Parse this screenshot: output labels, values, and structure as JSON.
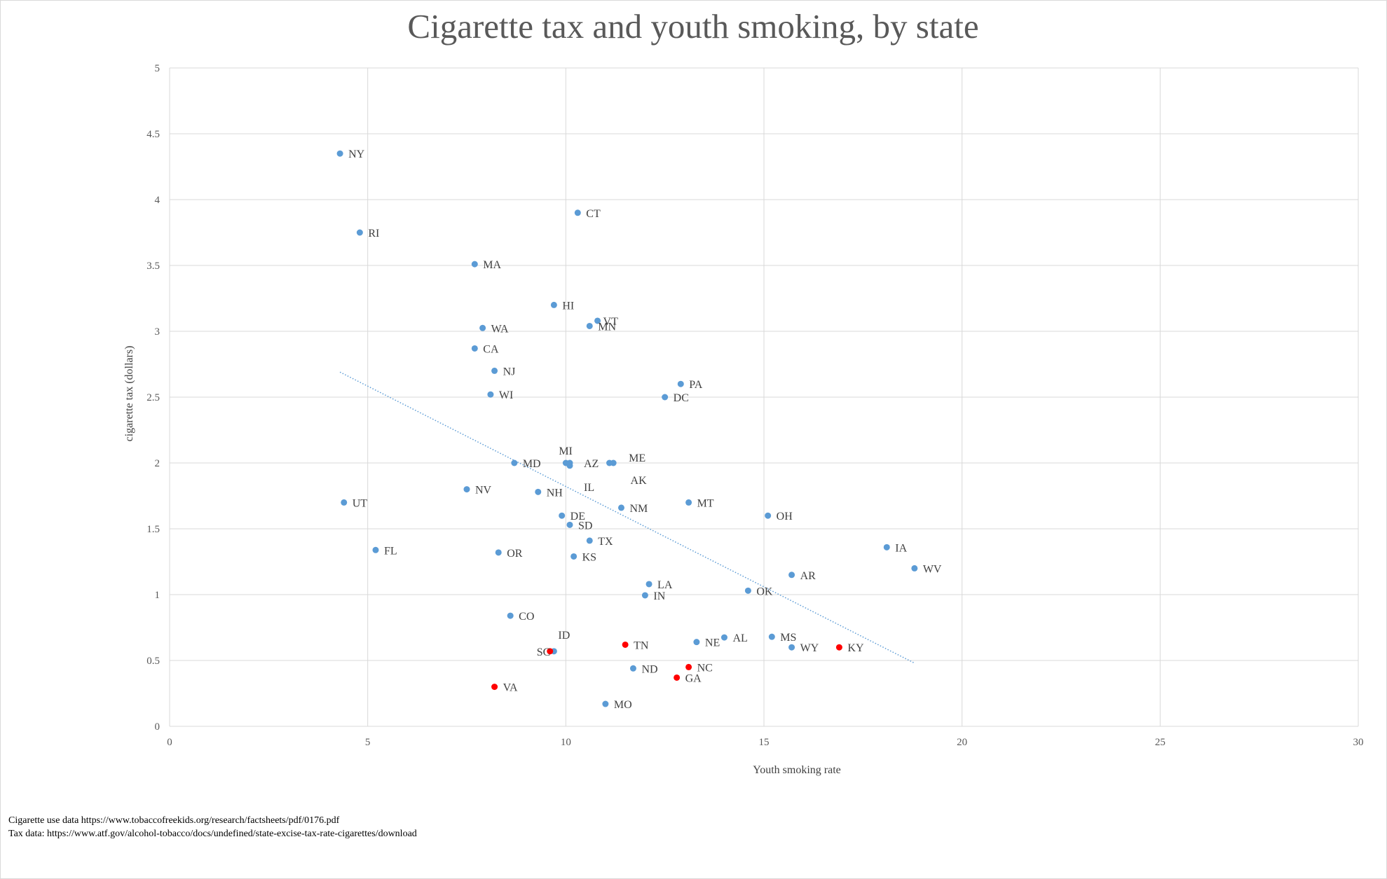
{
  "chart_data": {
    "type": "scatter",
    "title": "Cigarette tax and youth smoking, by state",
    "xlabel": "Youth smoking rate",
    "ylabel": "cigarette tax (dollars)",
    "xlim": [
      0,
      30
    ],
    "ylim": [
      0,
      5
    ],
    "xticks": [
      0,
      5,
      10,
      15,
      20,
      25,
      30
    ],
    "yticks": [
      0,
      0.5,
      1,
      1.5,
      2,
      2.5,
      3,
      3.5,
      4,
      4.5,
      5
    ],
    "grid": true,
    "colors": {
      "default": "#5b9bd5",
      "highlight": "#ff0000",
      "trend": "#5b9bd5"
    },
    "points": [
      {
        "label": "NY",
        "x": 4.3,
        "y": 4.35,
        "color": "default"
      },
      {
        "label": "RI",
        "x": 4.8,
        "y": 3.75,
        "color": "default"
      },
      {
        "label": "CT",
        "x": 10.3,
        "y": 3.9,
        "color": "default"
      },
      {
        "label": "MA",
        "x": 7.7,
        "y": 3.51,
        "color": "default"
      },
      {
        "label": "HI",
        "x": 9.7,
        "y": 3.2,
        "color": "default"
      },
      {
        "label": "VT",
        "x": 10.8,
        "y": 3.08,
        "color": "default"
      },
      {
        "label": "MN",
        "x": 10.6,
        "y": 3.04,
        "color": "default"
      },
      {
        "label": "WA",
        "x": 7.9,
        "y": 3.025,
        "color": "default"
      },
      {
        "label": "CA",
        "x": 7.7,
        "y": 2.87,
        "color": "default"
      },
      {
        "label": "NJ",
        "x": 8.2,
        "y": 2.7,
        "color": "default"
      },
      {
        "label": "WI",
        "x": 8.1,
        "y": 2.52,
        "color": "default"
      },
      {
        "label": "PA",
        "x": 12.9,
        "y": 2.6,
        "color": "default"
      },
      {
        "label": "DC",
        "x": 12.5,
        "y": 2.5,
        "color": "default"
      },
      {
        "label": "MI",
        "x": 10.0,
        "y": 2.0,
        "color": "default"
      },
      {
        "label": "AZ",
        "x": 10.1,
        "y": 2.0,
        "color": "default"
      },
      {
        "label": "IL",
        "x": 10.1,
        "y": 1.98,
        "color": "default"
      },
      {
        "label": "MD",
        "x": 8.7,
        "y": 2.0,
        "color": "default"
      },
      {
        "label": "ME",
        "x": 11.2,
        "y": 2.0,
        "color": "default"
      },
      {
        "label": "AK",
        "x": 11.1,
        "y": 2.0,
        "color": "default"
      },
      {
        "label": "NV",
        "x": 7.5,
        "y": 1.8,
        "color": "default"
      },
      {
        "label": "NH",
        "x": 9.3,
        "y": 1.78,
        "color": "default"
      },
      {
        "label": "UT",
        "x": 4.4,
        "y": 1.7,
        "color": "default"
      },
      {
        "label": "MT",
        "x": 13.1,
        "y": 1.7,
        "color": "default"
      },
      {
        "label": "NM",
        "x": 11.4,
        "y": 1.66,
        "color": "default"
      },
      {
        "label": "OH",
        "x": 15.1,
        "y": 1.6,
        "color": "default"
      },
      {
        "label": "DE",
        "x": 9.9,
        "y": 1.6,
        "color": "default"
      },
      {
        "label": "SD",
        "x": 10.1,
        "y": 1.53,
        "color": "default"
      },
      {
        "label": "TX",
        "x": 10.6,
        "y": 1.41,
        "color": "default"
      },
      {
        "label": "FL",
        "x": 5.2,
        "y": 1.339,
        "color": "default"
      },
      {
        "label": "OR",
        "x": 8.3,
        "y": 1.32,
        "color": "default"
      },
      {
        "label": "KS",
        "x": 10.2,
        "y": 1.29,
        "color": "default"
      },
      {
        "label": "IA",
        "x": 18.1,
        "y": 1.36,
        "color": "default"
      },
      {
        "label": "WV",
        "x": 18.8,
        "y": 1.2,
        "color": "default"
      },
      {
        "label": "AR",
        "x": 15.7,
        "y": 1.15,
        "color": "default"
      },
      {
        "label": "LA",
        "x": 12.1,
        "y": 1.08,
        "color": "default"
      },
      {
        "label": "IN",
        "x": 12.0,
        "y": 0.995,
        "color": "default"
      },
      {
        "label": "OK",
        "x": 14.6,
        "y": 1.03,
        "color": "default"
      },
      {
        "label": "CO",
        "x": 8.6,
        "y": 0.84,
        "color": "default"
      },
      {
        "label": "ID",
        "x": 9.7,
        "y": 0.57,
        "color": "default"
      },
      {
        "label": "SC",
        "x": 9.6,
        "y": 0.57,
        "color": "highlight"
      },
      {
        "label": "TN",
        "x": 11.5,
        "y": 0.62,
        "color": "highlight"
      },
      {
        "label": "NE",
        "x": 13.3,
        "y": 0.64,
        "color": "default"
      },
      {
        "label": "AL",
        "x": 14.0,
        "y": 0.675,
        "color": "default"
      },
      {
        "label": "MS",
        "x": 15.2,
        "y": 0.68,
        "color": "default"
      },
      {
        "label": "WY",
        "x": 15.7,
        "y": 0.6,
        "color": "default"
      },
      {
        "label": "KY",
        "x": 16.9,
        "y": 0.6,
        "color": "highlight"
      },
      {
        "label": "ND",
        "x": 11.7,
        "y": 0.44,
        "color": "default"
      },
      {
        "label": "NC",
        "x": 13.1,
        "y": 0.45,
        "color": "highlight"
      },
      {
        "label": "GA",
        "x": 12.8,
        "y": 0.37,
        "color": "highlight"
      },
      {
        "label": "VA",
        "x": 8.2,
        "y": 0.3,
        "color": "highlight"
      },
      {
        "label": "MO",
        "x": 11.0,
        "y": 0.17,
        "color": "default"
      }
    ],
    "trendline": {
      "style": "dotted",
      "x_start": 4.3,
      "y_start": 2.69,
      "x_end": 18.8,
      "y_end": 0.48
    }
  },
  "sources": {
    "line1": "Cigarette use data https://www.tobaccofreekids.org/research/factsheets/pdf/0176.pdf",
    "line2": "Tax data: https://www.atf.gov/alcohol-tobacco/docs/undefined/state-excise-tax-rate-cigarettes/download"
  }
}
